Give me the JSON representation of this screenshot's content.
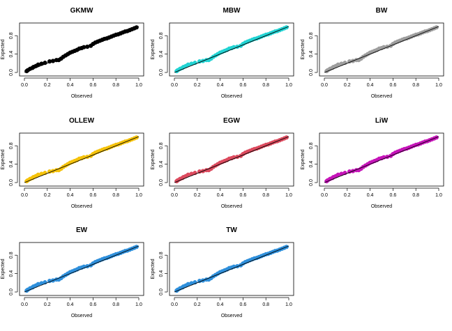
{
  "chart_data": {
    "type": "scatter",
    "layout": "3x3 grid of P-P plots",
    "xlabel": "Observed",
    "ylabel": "Expected",
    "xlim": [
      0,
      1
    ],
    "ylim": [
      0,
      1
    ],
    "x_ticks": [
      "0.0",
      "0.2",
      "0.4",
      "0.6",
      "0.8",
      "1.0"
    ],
    "y_ticks": [
      "0.0",
      "0.4",
      "0.8"
    ],
    "reference_line": [
      [
        0,
        0
      ],
      [
        1,
        1
      ]
    ],
    "points": [
      [
        0.02,
        0.03
      ],
      [
        0.03,
        0.05
      ],
      [
        0.05,
        0.08
      ],
      [
        0.07,
        0.1
      ],
      [
        0.08,
        0.12
      ],
      [
        0.1,
        0.14
      ],
      [
        0.12,
        0.17
      ],
      [
        0.15,
        0.19
      ],
      [
        0.18,
        0.21
      ],
      [
        0.22,
        0.24
      ],
      [
        0.25,
        0.25
      ],
      [
        0.28,
        0.27
      ],
      [
        0.3,
        0.27
      ],
      [
        0.32,
        0.3
      ],
      [
        0.34,
        0.34
      ],
      [
        0.36,
        0.37
      ],
      [
        0.38,
        0.4
      ],
      [
        0.4,
        0.43
      ],
      [
        0.42,
        0.45
      ],
      [
        0.44,
        0.47
      ],
      [
        0.46,
        0.49
      ],
      [
        0.48,
        0.52
      ],
      [
        0.5,
        0.53
      ],
      [
        0.52,
        0.55
      ],
      [
        0.55,
        0.56
      ],
      [
        0.58,
        0.58
      ],
      [
        0.6,
        0.62
      ],
      [
        0.62,
        0.65
      ],
      [
        0.64,
        0.67
      ],
      [
        0.66,
        0.69
      ],
      [
        0.68,
        0.71
      ],
      [
        0.7,
        0.73
      ],
      [
        0.72,
        0.74
      ],
      [
        0.74,
        0.76
      ],
      [
        0.76,
        0.78
      ],
      [
        0.78,
        0.8
      ],
      [
        0.8,
        0.82
      ],
      [
        0.82,
        0.83
      ],
      [
        0.84,
        0.85
      ],
      [
        0.86,
        0.87
      ],
      [
        0.88,
        0.89
      ],
      [
        0.9,
        0.9
      ],
      [
        0.92,
        0.92
      ],
      [
        0.94,
        0.94
      ],
      [
        0.96,
        0.96
      ],
      [
        0.98,
        0.98
      ]
    ],
    "panels": [
      {
        "title": "GKMW",
        "color": "#000000"
      },
      {
        "title": "MBW",
        "color": "#22d3d3"
      },
      {
        "title": "BW",
        "color": "#9e9e9e"
      },
      {
        "title": "OLLEW",
        "color": "#f5c20a"
      },
      {
        "title": "EGW",
        "color": "#dc4a5e"
      },
      {
        "title": "LiW",
        "color": "#c514b8"
      },
      {
        "title": "EW",
        "color": "#2e8fdb"
      },
      {
        "title": "TW",
        "color": "#2e8fdb"
      }
    ]
  }
}
